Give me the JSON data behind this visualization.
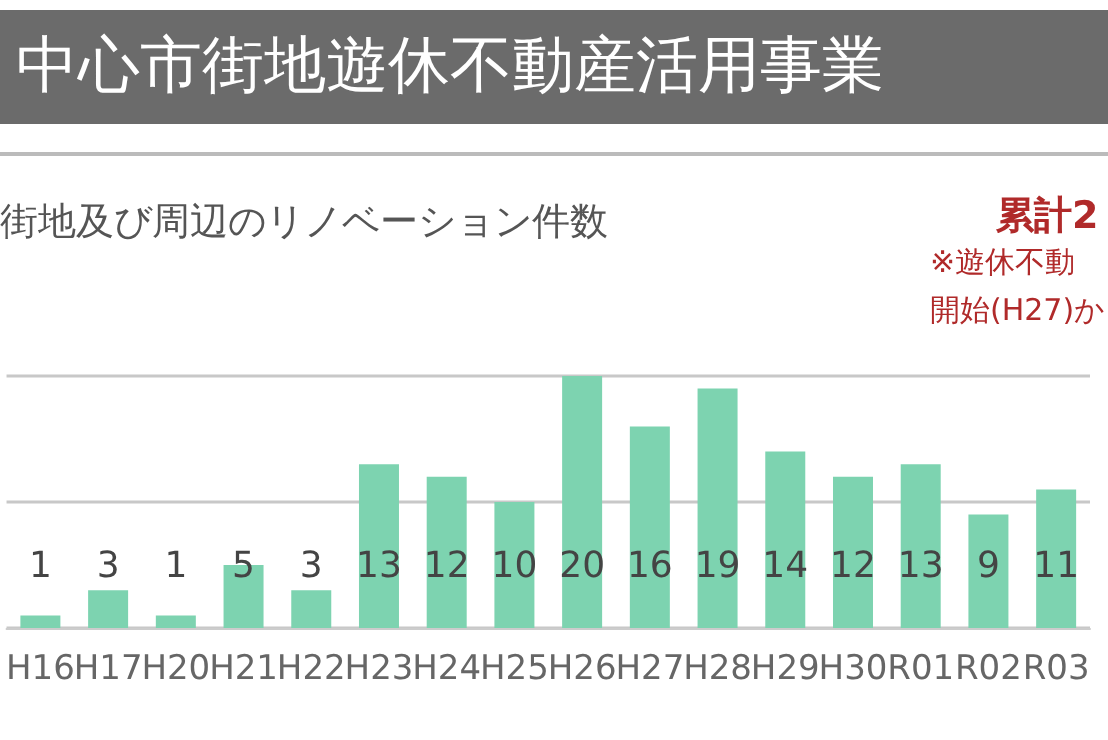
{
  "chart_data": {
    "type": "bar",
    "title": "中心市街地遊休不動産活用事業",
    "subtitle": "街地及び周辺のリノベーション件数",
    "annotations": [
      "累計2",
      "※遊休不動",
      "開始(H27)か"
    ],
    "categories": [
      "H16",
      "H17",
      "H20",
      "H21",
      "H22",
      "H23",
      "H24",
      "H25",
      "H26",
      "H27",
      "H28",
      "H29",
      "H30",
      "R01",
      "R02",
      "R03"
    ],
    "values": [
      1,
      3,
      1,
      5,
      3,
      13,
      12,
      10,
      20,
      16,
      19,
      14,
      12,
      13,
      9,
      11
    ],
    "color": "#7dd3b0",
    "ylim": [
      0,
      20
    ],
    "yticks": [
      0,
      10,
      20
    ],
    "grid": "y",
    "tick_labels": "x",
    "data_labels": true
  }
}
